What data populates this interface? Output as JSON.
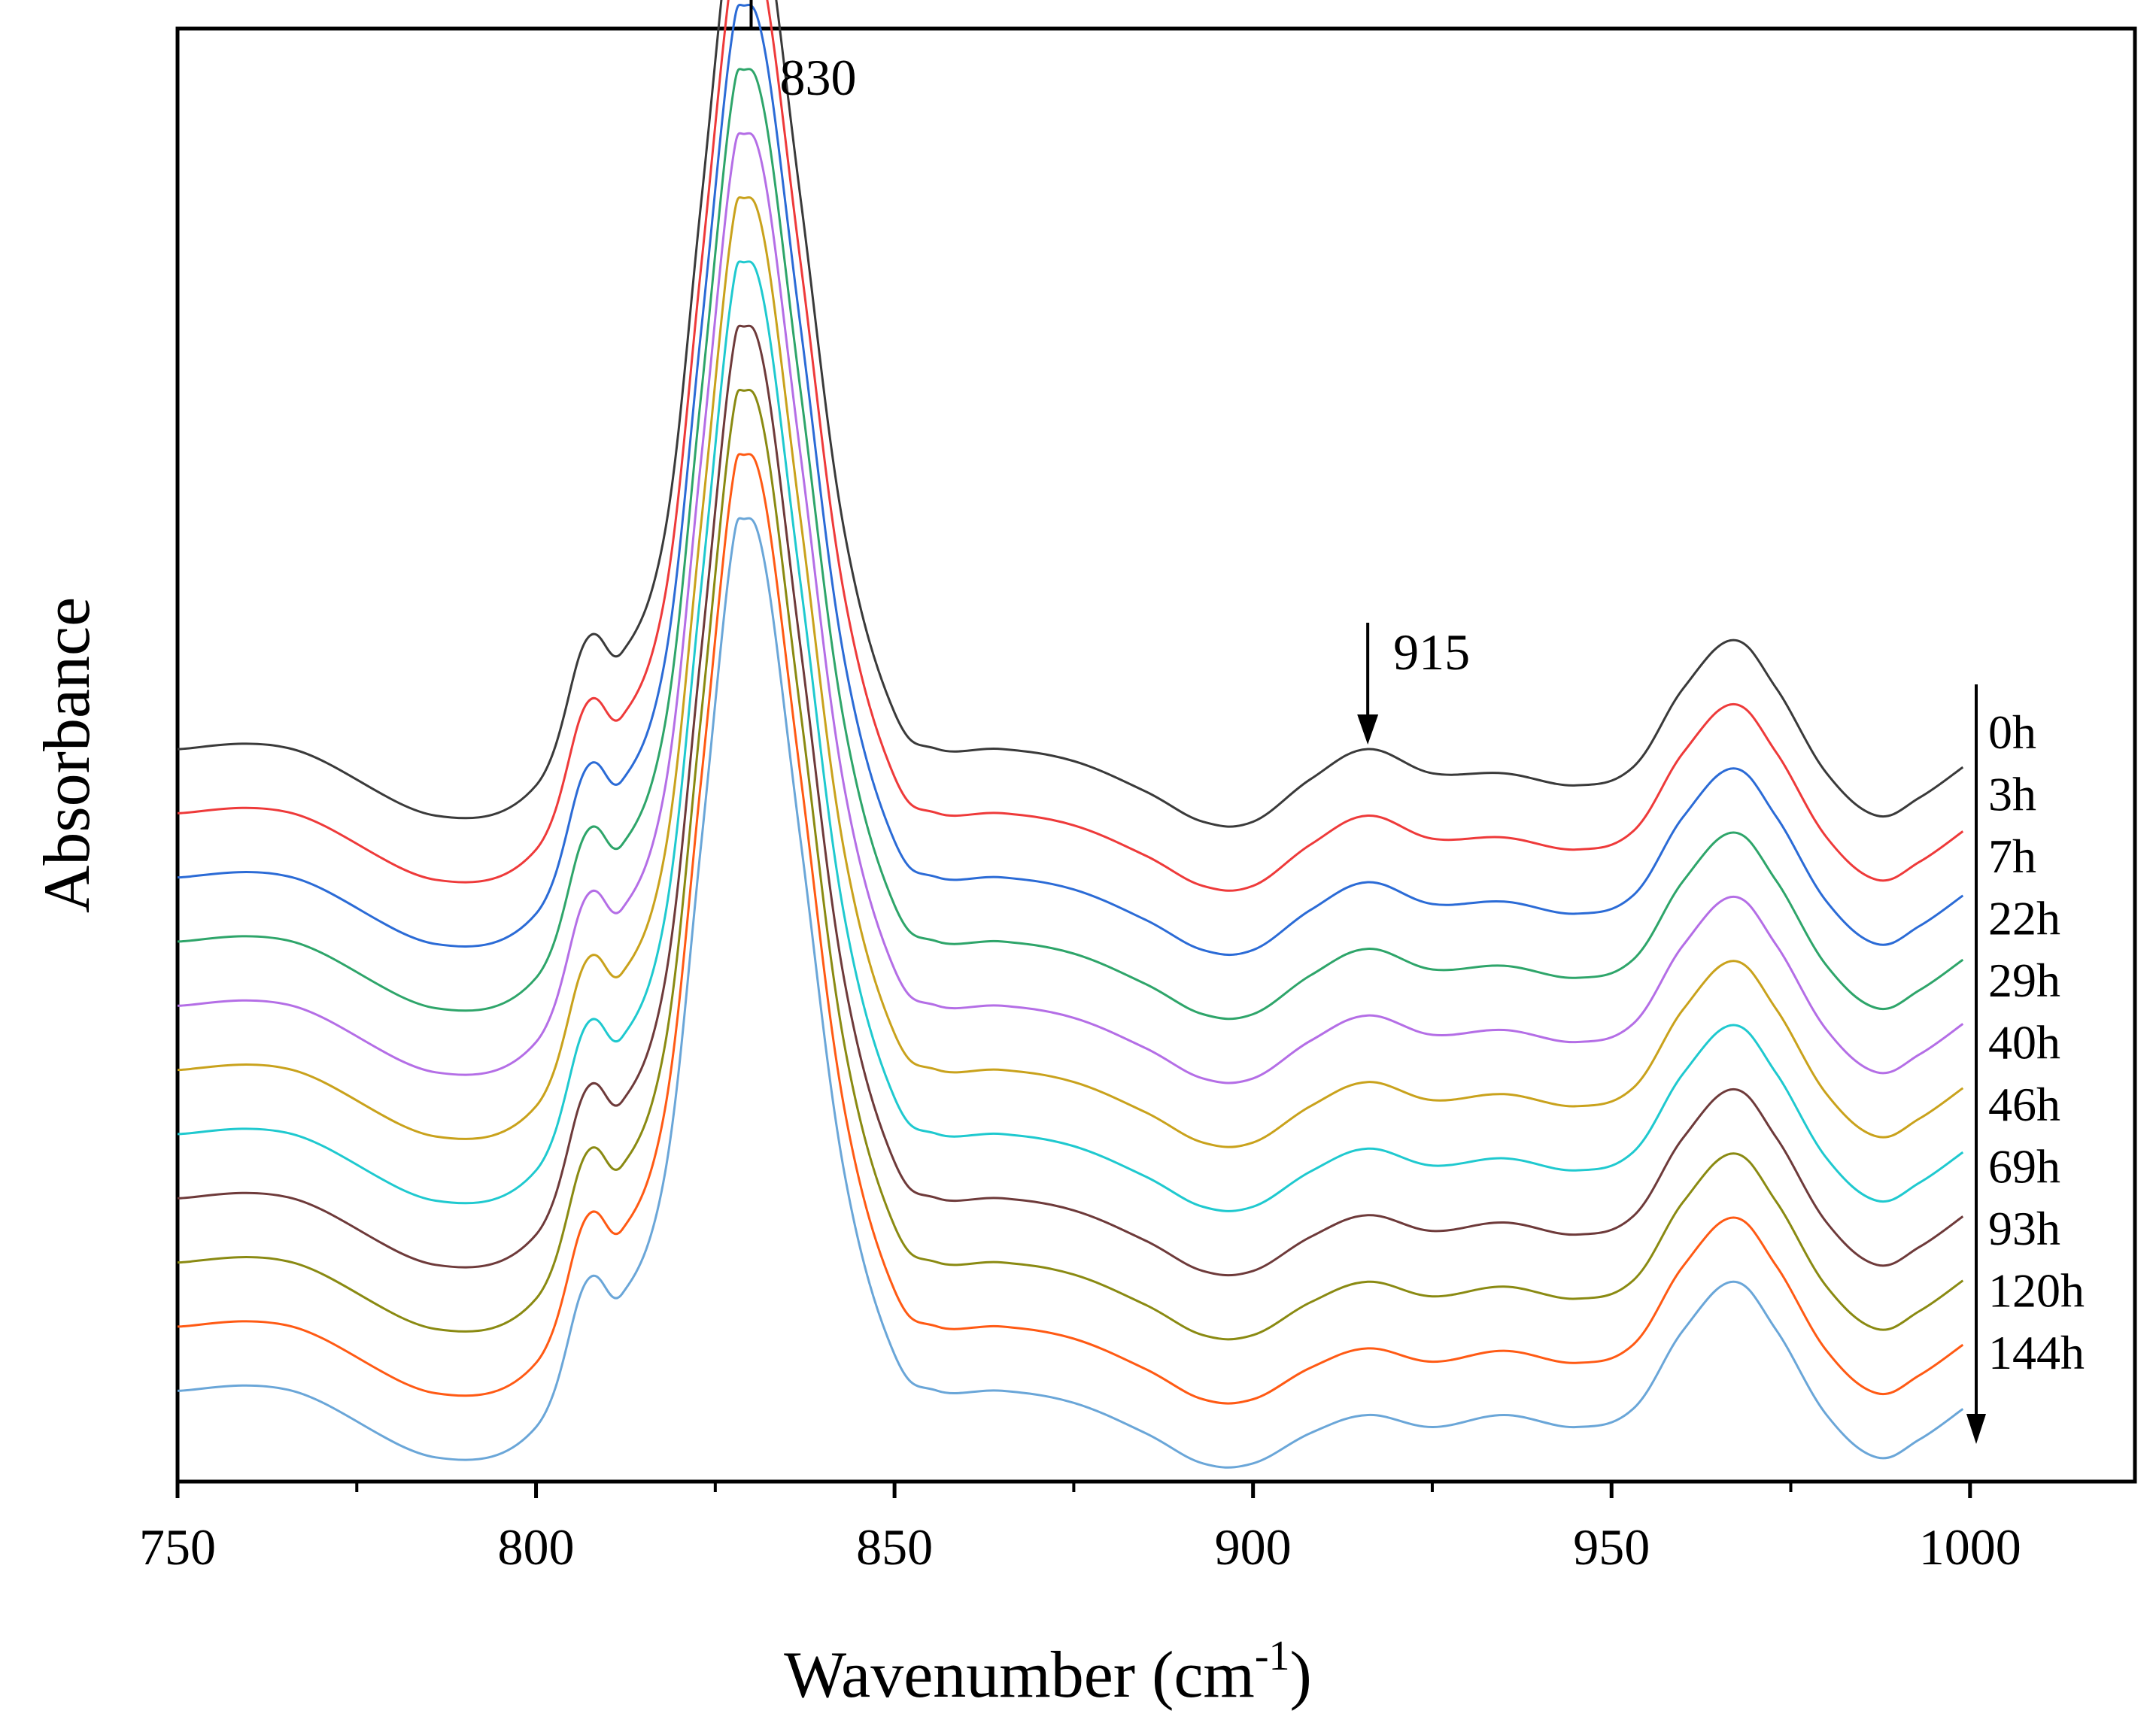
{
  "chart_data": {
    "type": "line",
    "title": "",
    "xlabel": "Wavenumber (cm",
    "xlabel_sup": "-1",
    "xlabel_close": ")",
    "ylabel": "Absorbance",
    "xlim": [
      750,
      1023
    ],
    "x_ticks": [
      750,
      800,
      850,
      900,
      950,
      1000
    ],
    "x_tick_labels": [
      "750",
      "800",
      "850",
      "900",
      "950",
      "1000"
    ],
    "x_minor_ticks": [
      775,
      825,
      875,
      925,
      975
    ],
    "ylim": [
      0,
      1.2
    ],
    "y_ticks": [],
    "grid": false,
    "legend": "right (inline labels with downward arrow)",
    "annotations": [
      {
        "text": "830",
        "x": 830,
        "y": 1.13
      },
      {
        "text": "915",
        "x": 915,
        "y": 0.63
      }
    ],
    "peak_profile": {
      "x": [
        750,
        766,
        786,
        800,
        807,
        812,
        818,
        823,
        827,
        829,
        832,
        837,
        843,
        850,
        856,
        865,
        875,
        885,
        893,
        900,
        908,
        916,
        925,
        935,
        945,
        953,
        960,
        967,
        973,
        980,
        987,
        993,
        999
      ],
      "shape": [
        0.0,
        0.0,
        -0.055,
        -0.03,
        0.09,
        0.08,
        0.18,
        0.45,
        0.68,
        0.72,
        0.68,
        0.45,
        0.18,
        0.03,
        0.0,
        0.0,
        -0.01,
        -0.035,
        -0.06,
        -0.06,
        -0.025,
        0.0,
        -0.02,
        -0.02,
        -0.03,
        -0.015,
        0.05,
        0.09,
        0.05,
        -0.02,
        -0.055,
        -0.04,
        -0.015
      ]
    },
    "series": [
      {
        "name": "0h",
        "color": "#3a3a3a",
        "baseline": 0.605
      },
      {
        "name": "3h",
        "color": "#ee3a3a",
        "baseline": 0.552
      },
      {
        "name": "7h",
        "color": "#2b6bd6",
        "baseline": 0.499
      },
      {
        "name": "22h",
        "color": "#2ea56a",
        "baseline": 0.446
      },
      {
        "name": "29h",
        "color": "#b46ee6",
        "baseline": 0.393
      },
      {
        "name": "40h",
        "color": "#c9a21c",
        "baseline": 0.34
      },
      {
        "name": "46h",
        "color": "#1fc9cf",
        "baseline": 0.287
      },
      {
        "name": "69h",
        "color": "#6e3a3a",
        "baseline": 0.234
      },
      {
        "name": "93h",
        "color": "#8a8a12",
        "baseline": 0.181
      },
      {
        "name": "120h",
        "color": "#ff5a14",
        "baseline": 0.128
      },
      {
        "name": "144h",
        "color": "#6aa6d8",
        "baseline": 0.075
      }
    ]
  }
}
